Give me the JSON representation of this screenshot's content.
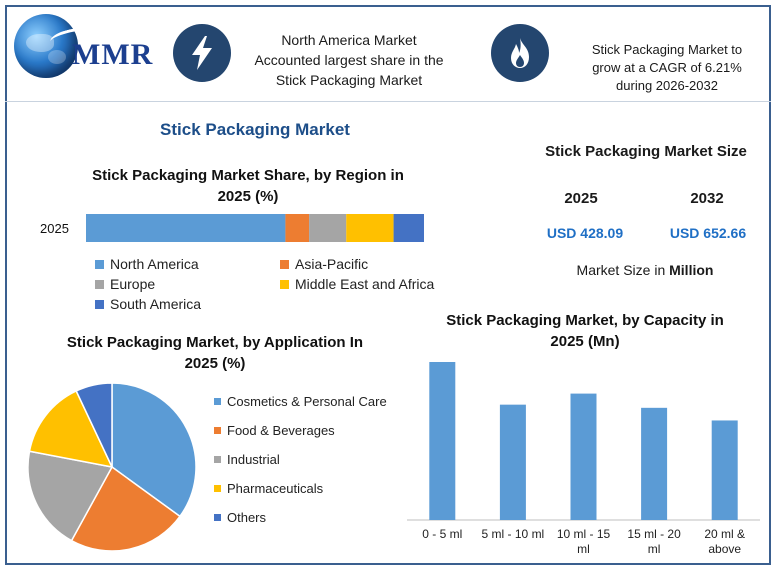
{
  "header": {
    "logo_text": "MMR",
    "highlight_1": [
      "North America Market",
      "Accounted largest share in the",
      "Stick Packaging Market"
    ],
    "highlight_2": [
      "Stick Packaging Market to",
      "grow at a CAGR of 6.21%",
      "during 2026-2032"
    ],
    "icon_1": "lightning-bolt-icon",
    "icon_2": "flame-icon",
    "badge_color": "#24466f"
  },
  "main_title": "Stick Packaging Market",
  "market_size": {
    "title": "Stick Packaging Market Size",
    "year_1": "2025",
    "value_1": "USD 428.09",
    "year_2": "2032",
    "value_2": "USD 652.66",
    "unit_prefix": "Market Size in ",
    "unit_bold": "Million"
  },
  "chart_data": [
    {
      "type": "bar",
      "orientation": "horizontal-stacked",
      "title": "Stick Packaging Market Share, by Region in 2025 (%)",
      "title_lines": [
        "Stick Packaging Market Share, by Region in",
        "2025 (%)"
      ],
      "categories": [
        "2025"
      ],
      "series": [
        {
          "name": "North America",
          "values": [
            59
          ],
          "color": "#5b9bd5"
        },
        {
          "name": "Asia-Pacific",
          "values": [
            7
          ],
          "color": "#ed7d31"
        },
        {
          "name": "Europe",
          "values": [
            11
          ],
          "color": "#a5a5a5"
        },
        {
          "name": "Middle East and Africa",
          "values": [
            14
          ],
          "color": "#ffc000"
        },
        {
          "name": "South America",
          "values": [
            9
          ],
          "color": "#4472c4"
        }
      ],
      "legend": "bottom"
    },
    {
      "type": "pie",
      "title": "Stick Packaging Market, by Application In 2025 (%)",
      "title_lines": [
        "Stick Packaging Market, by Application In",
        "2025 (%)"
      ],
      "slices": [
        {
          "label": "Cosmetics & Personal Care",
          "value": 35,
          "color": "#5b9bd5"
        },
        {
          "label": "Food & Beverages",
          "value": 23,
          "color": "#ed7d31"
        },
        {
          "label": "Industrial",
          "value": 20,
          "color": "#a5a5a5"
        },
        {
          "label": "Pharmaceuticals",
          "value": 15,
          "color": "#ffc000"
        },
        {
          "label": "Others",
          "value": 7,
          "color": "#4472c4"
        }
      ],
      "legend": "right"
    },
    {
      "type": "bar",
      "title": "Stick Packaging Market, by Capacity in 2025 (Mn)",
      "title_lines": [
        "Stick Packaging Market, by Capacity in",
        "2025 (Mn)"
      ],
      "categories": [
        "0 - 5 ml",
        "5 ml - 10 ml",
        "10 ml - 15 ml",
        "15 ml - 20 ml",
        "20 ml & above"
      ],
      "category_lines": [
        [
          "0 - 5 ml"
        ],
        [
          "5 ml - 10 ml"
        ],
        [
          "10 ml - 15",
          "ml"
        ],
        [
          "15 ml - 20",
          "ml"
        ],
        [
          "20 ml &",
          "above"
        ]
      ],
      "values": [
        100,
        73,
        80,
        71,
        63
      ],
      "color": "#5b9bd5",
      "ylim": [
        0,
        100
      ],
      "grid": false
    }
  ]
}
